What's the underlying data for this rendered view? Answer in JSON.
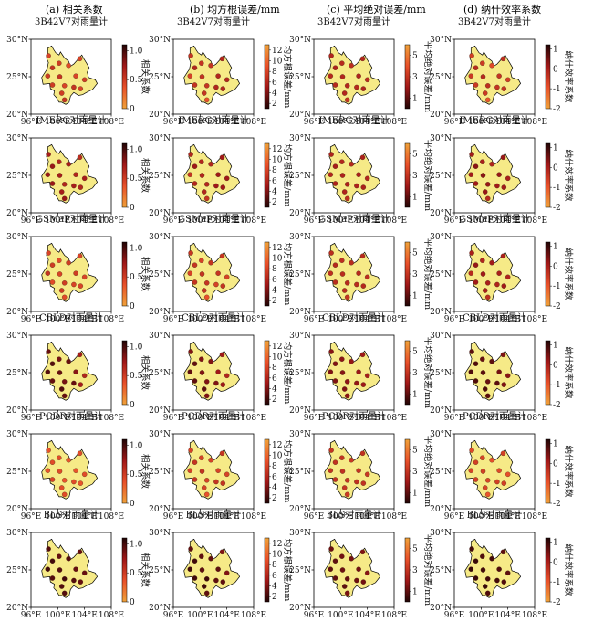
{
  "column_headers": [
    "(a) 相关系数",
    "(b) 均方根误差/mm",
    "(c) 平均绝对误差/mm",
    "(d) 纳什效率系数"
  ],
  "row_titles": [
    "3B42V7对雨量计",
    "IMERG对雨量计",
    "GSMaP对雨量计",
    "CBLD对雨量计",
    "PCDR对雨量计",
    "BLS对雨量计"
  ],
  "chart_data": {
    "type": "map",
    "axes": {
      "x_ticks": [
        "96°E",
        "100°E",
        "104°E",
        "108°E"
      ],
      "y_ticks": [
        "30°N",
        "25°N",
        "20°N"
      ],
      "xlim": [
        96,
        108
      ],
      "ylim": [
        20,
        30
      ]
    },
    "region_fill": "#f6ea87",
    "station_count": 15,
    "stations": [
      {
        "lon": 98.6,
        "lat": 27.8
      },
      {
        "lon": 99.2,
        "lat": 26.2
      },
      {
        "lon": 100.2,
        "lat": 26.8
      },
      {
        "lon": 101.6,
        "lat": 26.5
      },
      {
        "lon": 103.3,
        "lat": 27.4
      },
      {
        "lon": 98.5,
        "lat": 25.1
      },
      {
        "lon": 100.3,
        "lat": 25.0
      },
      {
        "lon": 102.7,
        "lat": 25.1
      },
      {
        "lon": 104.0,
        "lat": 24.6
      },
      {
        "lon": 99.2,
        "lat": 23.9
      },
      {
        "lon": 101.0,
        "lat": 23.8
      },
      {
        "lon": 102.4,
        "lat": 23.6
      },
      {
        "lon": 100.6,
        "lat": 22.8
      },
      {
        "lon": 103.4,
        "lat": 23.4
      },
      {
        "lon": 101.0,
        "lat": 21.9
      }
    ],
    "metrics": [
      {
        "label": "相关系数",
        "ticks": [
          "1.0",
          "0.5",
          "0"
        ],
        "tick_values": [
          1.0,
          0.5,
          0.0
        ],
        "min": 0,
        "max": 1.1,
        "colors": [
          "#f0a23a",
          "#e8502a",
          "#a01818",
          "#200505"
        ]
      },
      {
        "label": "均方根误差/mm",
        "ticks": [
          "12",
          "10",
          "8",
          "6",
          "4",
          "2"
        ],
        "tick_values": [
          12,
          10,
          8,
          6,
          4,
          2
        ],
        "min": 1,
        "max": 13,
        "colors": [
          "#200505",
          "#a01818",
          "#e8502a",
          "#f0a23a"
        ]
      },
      {
        "label": "平均绝对误差/mm",
        "ticks": [
          "5",
          "3",
          "1"
        ],
        "tick_values": [
          5,
          3,
          1
        ],
        "min": 0,
        "max": 6,
        "colors": [
          "#200505",
          "#a01818",
          "#e8502a",
          "#f0a23a"
        ]
      },
      {
        "label": "纳什效率系数",
        "ticks": [
          "1",
          "0",
          "-1",
          "-2"
        ],
        "tick_values": [
          1,
          0,
          -1,
          -2
        ],
        "min": -2,
        "max": 1.2,
        "colors": [
          "#f0a23a",
          "#e8502a",
          "#a01818",
          "#200505"
        ]
      }
    ],
    "values": [
      [
        [
          0.45,
          0.55,
          0.5,
          0.4,
          0.45,
          0.5,
          0.55,
          0.45,
          0.5,
          0.5,
          0.45,
          0.55,
          0.5,
          0.45,
          0.55
        ],
        [
          7,
          6,
          7,
          7,
          6,
          8,
          7,
          6,
          6,
          7,
          7,
          6,
          7,
          6,
          9
        ],
        [
          2.5,
          2.4,
          2.6,
          2.8,
          2.5,
          2.6,
          2.5,
          2.4,
          2.7,
          2.6,
          2.5,
          2.6,
          2.5,
          2.4,
          3.0
        ],
        [
          -0.6,
          -0.2,
          -0.5,
          -0.8,
          -0.3,
          -0.5,
          -0.2,
          -0.4,
          -0.6,
          -0.5,
          -0.3,
          -0.4,
          -0.5,
          -0.4,
          -1.0
        ]
      ],
      [
        [
          0.7,
          0.75,
          0.65,
          0.7,
          0.6,
          0.75,
          0.7,
          0.65,
          0.7,
          0.75,
          0.65,
          0.7,
          0.7,
          0.65,
          0.75
        ],
        [
          6,
          5,
          6,
          6,
          5,
          7,
          6,
          5,
          5,
          6,
          6,
          5,
          6,
          5,
          7
        ],
        [
          2.4,
          2.2,
          2.5,
          2.6,
          2.3,
          2.5,
          2.4,
          2.3,
          2.5,
          2.4,
          2.3,
          2.4,
          2.4,
          2.3,
          2.8
        ],
        [
          0.1,
          0.3,
          0.0,
          -0.1,
          0.2,
          0.1,
          0.3,
          0.2,
          0.0,
          0.1,
          0.2,
          0.1,
          0.2,
          0.1,
          -0.2
        ]
      ],
      [
        [
          0.45,
          0.5,
          0.4,
          0.5,
          0.45,
          0.55,
          0.45,
          0.5,
          0.45,
          0.4,
          0.5,
          0.45,
          0.5,
          0.45,
          0.4
        ],
        [
          7,
          7,
          8,
          7,
          7,
          8,
          7,
          7,
          8,
          7,
          7,
          8,
          7,
          7,
          9
        ],
        [
          2.7,
          2.6,
          2.8,
          2.7,
          2.6,
          2.8,
          2.7,
          2.6,
          2.8,
          2.7,
          2.6,
          2.7,
          2.7,
          2.6,
          3.0
        ],
        [
          0.0,
          0.2,
          -0.1,
          0.1,
          0.0,
          -0.2,
          0.1,
          0.0,
          -0.1,
          0.1,
          0.0,
          -0.1,
          0.0,
          0.1,
          -0.3
        ]
      ],
      [
        [
          0.9,
          0.95,
          0.85,
          0.9,
          0.7,
          0.95,
          0.9,
          0.8,
          0.65,
          0.9,
          0.85,
          0.9,
          0.95,
          0.7,
          0.9
        ],
        [
          4,
          3,
          4,
          4,
          5,
          3,
          4,
          5,
          6,
          3,
          4,
          4,
          3,
          5,
          4
        ],
        [
          1.6,
          1.5,
          1.7,
          1.8,
          2.0,
          1.5,
          1.6,
          1.9,
          2.2,
          1.5,
          1.7,
          1.8,
          1.5,
          2.0,
          1.7
        ],
        [
          0.7,
          0.8,
          0.6,
          0.7,
          0.4,
          0.8,
          0.7,
          0.5,
          0.3,
          0.8,
          0.6,
          0.7,
          0.8,
          0.4,
          0.7
        ]
      ],
      [
        [
          0.35,
          0.4,
          0.4,
          0.35,
          0.4,
          0.35,
          0.4,
          0.35,
          0.4,
          0.45,
          0.35,
          0.4,
          0.4,
          0.35,
          0.4
        ],
        [
          8,
          7,
          8,
          8,
          7,
          8,
          7,
          8,
          8,
          7,
          8,
          7,
          8,
          7,
          9
        ],
        [
          3.0,
          2.9,
          3.0,
          3.1,
          2.9,
          3.0,
          2.9,
          3.0,
          3.1,
          2.9,
          3.0,
          2.9,
          3.0,
          2.9,
          3.2
        ],
        [
          -0.8,
          -0.6,
          -0.7,
          -0.9,
          -0.6,
          -0.7,
          -0.6,
          -0.8,
          -0.9,
          -0.6,
          -0.7,
          -0.6,
          -0.7,
          -0.6,
          -1.0
        ]
      ],
      [
        [
          0.95,
          1.0,
          0.9,
          0.95,
          0.9,
          1.0,
          0.95,
          0.9,
          0.9,
          0.95,
          1.0,
          0.95,
          0.95,
          0.9,
          0.95
        ],
        [
          3,
          2,
          3,
          3,
          4,
          2,
          3,
          3,
          4,
          2,
          2,
          3,
          2,
          3,
          3
        ],
        [
          1.2,
          1.0,
          1.3,
          1.3,
          1.5,
          1.0,
          1.2,
          1.3,
          1.6,
          1.0,
          1.1,
          1.2,
          1.0,
          1.3,
          1.4
        ],
        [
          0.9,
          1.0,
          0.8,
          0.9,
          0.7,
          1.0,
          0.9,
          0.8,
          0.7,
          1.0,
          0.9,
          0.9,
          1.0,
          0.8,
          0.8
        ]
      ]
    ]
  }
}
